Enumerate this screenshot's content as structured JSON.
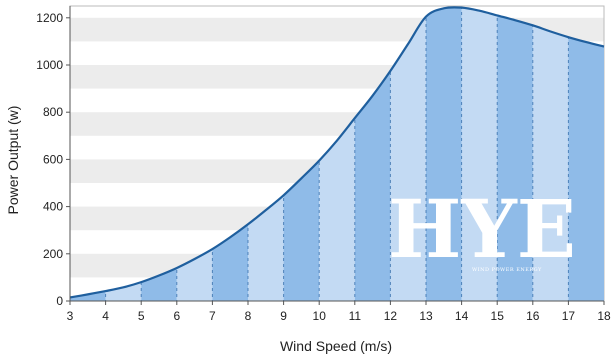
{
  "chart_data": {
    "type": "area",
    "title": "",
    "xlabel": "Wind Speed (m/s)",
    "ylabel": "Power Output (w)",
    "x": [
      3,
      3.5,
      4,
      4.5,
      5,
      5.5,
      6,
      6.5,
      7,
      7.5,
      8,
      8.5,
      9,
      9.5,
      10,
      10.5,
      11,
      11.5,
      12,
      12.5,
      13,
      13.5,
      14,
      14.5,
      15,
      15.5,
      16,
      16.5,
      17,
      17.5,
      18
    ],
    "y": [
      15,
      28,
      42,
      58,
      80,
      108,
      140,
      178,
      220,
      270,
      325,
      385,
      448,
      520,
      595,
      680,
      775,
      870,
      975,
      1090,
      1205,
      1240,
      1243,
      1230,
      1210,
      1190,
      1168,
      1142,
      1118,
      1097,
      1078
    ],
    "xlim": [
      3,
      18
    ],
    "ylim": [
      0,
      1250
    ],
    "xticks": [
      "3",
      "4",
      "5",
      "6",
      "7",
      "8",
      "9",
      "10",
      "11",
      "12",
      "13",
      "14",
      "15",
      "16",
      "17",
      "18"
    ],
    "yticks": [
      "0",
      "200",
      "400",
      "600",
      "800",
      "1000",
      "1200"
    ],
    "grid": true,
    "colors": {
      "line": "#1f5f9e",
      "fill_dark": "#8fbbe8",
      "fill_light": "#c3daf3",
      "grid_band": "#ececec",
      "dash": "#2f6aa8"
    }
  },
  "watermark": {
    "letters": "HYE",
    "subtitle": "WIND POWER ENERGY"
  }
}
